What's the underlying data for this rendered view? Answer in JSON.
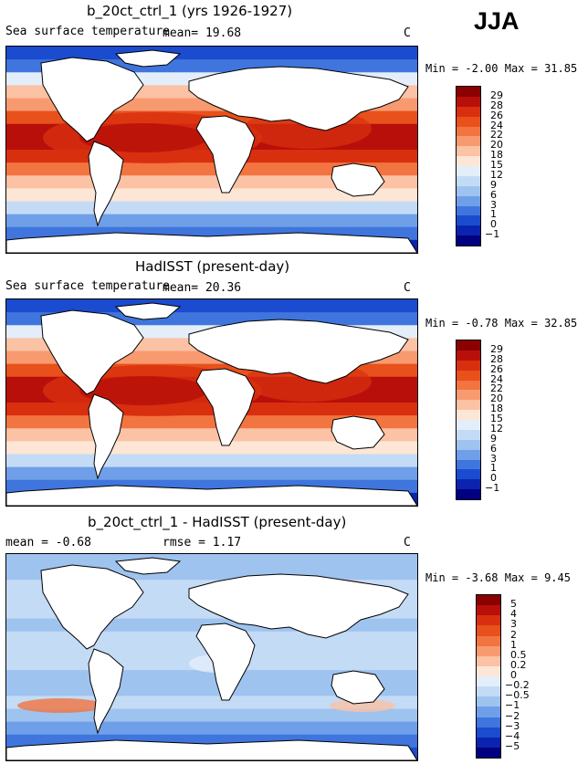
{
  "season": "JJA",
  "panels": [
    {
      "title": "b_20ct_ctrl_1 (yrs 1926-1927)",
      "subtitle_left": "Sea surface temperature",
      "mean_text": "mean=  19.68",
      "units": "C",
      "min_label": "Min =",
      "min_value": "-2.00",
      "max_label": "Max =",
      "max_value": "31.85"
    },
    {
      "title": "HadISST (present-day)",
      "subtitle_left": "Sea surface temperature",
      "mean_text": "mean=  20.36",
      "units": "C",
      "min_label": "Min =",
      "min_value": "-0.78",
      "max_label": "Max =",
      "max_value": "32.85"
    },
    {
      "title": "b_20ct_ctrl_1 - HadISST (present-day)",
      "subtitle_left": "mean =  -0.68",
      "mean_text": "rmse =   1.17",
      "units": "C",
      "min_label": "Min =",
      "min_value": "-3.68",
      "max_label": "Max =",
      "max_value": "9.45"
    }
  ],
  "chart_data": [
    {
      "type": "heatmap",
      "title": "b_20ct_ctrl_1 (yrs 1926-1927)",
      "variable": "Sea surface temperature",
      "units": "C",
      "mean": 19.68,
      "min": -2.0,
      "max": 31.85,
      "colorbar_levels": [
        29,
        28,
        26,
        24,
        22,
        20,
        18,
        15,
        12,
        9,
        6,
        3,
        1,
        0,
        -1
      ],
      "colorbar_colors": [
        "#8b0000",
        "#b80f0a",
        "#d8300f",
        "#e8501c",
        "#f27440",
        "#f89a70",
        "#fbc2a4",
        "#fde6d6",
        "#e4eefa",
        "#c4dbf6",
        "#9ec3ef",
        "#6f9fe8",
        "#3f75dd",
        "#1b4bce",
        "#0a24b0",
        "#000080"
      ]
    },
    {
      "type": "heatmap",
      "title": "HadISST (present-day)",
      "variable": "Sea surface temperature",
      "units": "C",
      "mean": 20.36,
      "min": -0.78,
      "max": 32.85,
      "colorbar_levels": [
        29,
        28,
        26,
        24,
        22,
        20,
        18,
        15,
        12,
        9,
        6,
        3,
        1,
        0,
        -1
      ],
      "colorbar_colors": [
        "#8b0000",
        "#b80f0a",
        "#d8300f",
        "#e8501c",
        "#f27440",
        "#f89a70",
        "#fbc2a4",
        "#fde6d6",
        "#e4eefa",
        "#c4dbf6",
        "#9ec3ef",
        "#6f9fe8",
        "#3f75dd",
        "#1b4bce",
        "#0a24b0",
        "#000080"
      ]
    },
    {
      "type": "heatmap",
      "title": "b_20ct_ctrl_1 - HadISST (present-day)",
      "units": "C",
      "mean": -0.68,
      "rmse": 1.17,
      "min": -3.68,
      "max": 9.45,
      "colorbar_levels": [
        "5",
        "4",
        "3",
        "2",
        "1",
        "0.5",
        "0.2",
        "0",
        "-0.2",
        "-0.5",
        "-1",
        "-2",
        "-3",
        "-4",
        "-5"
      ],
      "colorbar_colors": [
        "#8b0000",
        "#b80f0a",
        "#d8300f",
        "#e8501c",
        "#f27440",
        "#f89a70",
        "#fbc2a4",
        "#fde6d6",
        "#e4eefa",
        "#c4dbf6",
        "#9ec3ef",
        "#6f9fe8",
        "#3f75dd",
        "#1b4bce",
        "#0a24b0",
        "#000080"
      ]
    }
  ]
}
